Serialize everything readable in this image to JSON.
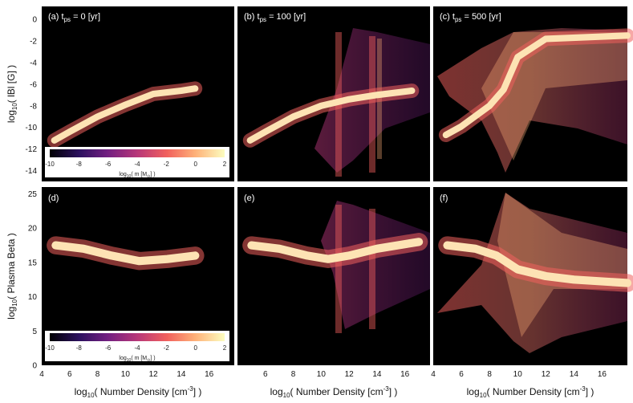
{
  "figure": {
    "y_label_top_prefix": "log",
    "y_label_top_sub": "10",
    "y_label_top_rest": "( lBl [G] )",
    "y_label_bottom_prefix": "log",
    "y_label_bottom_sub": "10",
    "y_label_bottom_rest": "( Plasma Beta )",
    "x_label_prefix": "log",
    "x_label_sub": "10",
    "x_label_rest": "( Number Density [cm",
    "x_label_sup": "-3",
    "x_label_end": "] )"
  },
  "colorbar": {
    "ticks": [
      "-10",
      "-8",
      "-6",
      "-4",
      "-2",
      "0",
      "2"
    ],
    "label_prefix": "log",
    "label_sub": "10",
    "label_mid": "( m [M",
    "label_sub2": "⊙",
    "label_end": "] )",
    "stops": [
      "#000004",
      "#2c115f",
      "#721f81",
      "#b73779",
      "#f1605d",
      "#feb078",
      "#fcfdbf"
    ]
  },
  "chart_data": [
    {
      "type": "heatmap",
      "panel": "(a)",
      "title_prefix": "(a) t",
      "title_sub": "ps",
      "title_rest": " = 0 [yr]",
      "xlim": [
        4,
        17.8
      ],
      "ylim": [
        -15,
        1.2
      ],
      "yticks": [
        "0",
        "-2",
        "-4",
        "-6",
        "-8",
        "-10",
        "-12",
        "-14"
      ],
      "ridge": [
        [
          4.9,
          -11.2
        ],
        [
          6,
          -10.4
        ],
        [
          8,
          -9
        ],
        [
          10,
          -7.9
        ],
        [
          12,
          -6.9
        ],
        [
          14,
          -6.6
        ],
        [
          15,
          -6.4
        ]
      ],
      "ridge_width": 0.6
    },
    {
      "type": "heatmap",
      "panel": "(b)",
      "title_prefix": "(b) t",
      "title_sub": "ps",
      "title_rest": " = 100 [yr]",
      "xlim": [
        4,
        17.8
      ],
      "ylim": [
        -15,
        1.2
      ],
      "ridge": [
        [
          4.9,
          -11.2
        ],
        [
          6,
          -10.4
        ],
        [
          8,
          -9
        ],
        [
          10,
          -8
        ],
        [
          12,
          -7.4
        ],
        [
          14,
          -7
        ],
        [
          16.5,
          -6.6
        ]
      ],
      "ridge_width": 0.6
    },
    {
      "type": "heatmap",
      "panel": "(c)",
      "title_prefix": "(c) t",
      "title_sub": "ps",
      "title_rest": " = 500 [yr]",
      "xlim": [
        4,
        17.8
      ],
      "ylim": [
        -15,
        1.2
      ],
      "ridge": [
        [
          4.9,
          -10.7
        ],
        [
          6,
          -9.9
        ],
        [
          8,
          -8
        ],
        [
          9,
          -6.5
        ],
        [
          10,
          -3.5
        ],
        [
          12,
          -1.8
        ],
        [
          17.8,
          -1.5
        ]
      ],
      "ridge_width": 0.6
    },
    {
      "type": "heatmap",
      "panel": "(d)",
      "title": "(d)",
      "xlim": [
        4,
        17.8
      ],
      "ylim": [
        0,
        26
      ],
      "yticks": [
        "25",
        "20",
        "15",
        "10",
        "5",
        "0"
      ],
      "xticks": [
        "4",
        "6",
        "8",
        "10",
        "12",
        "14",
        "16"
      ],
      "ridge": [
        [
          5,
          17.5
        ],
        [
          7,
          17
        ],
        [
          9,
          16
        ],
        [
          11,
          15.2
        ],
        [
          13,
          15.5
        ],
        [
          15,
          16
        ]
      ],
      "ridge_width": 1.2
    },
    {
      "type": "heatmap",
      "panel": "(e)",
      "title": "(e)",
      "xlim": [
        4,
        17.8
      ],
      "ylim": [
        0,
        26
      ],
      "xticks": [
        "6",
        "8",
        "10",
        "12",
        "14",
        "16"
      ],
      "ridge": [
        [
          5,
          17.5
        ],
        [
          7,
          17
        ],
        [
          9,
          16
        ],
        [
          10.5,
          15.5
        ],
        [
          12,
          16
        ],
        [
          14,
          17
        ],
        [
          17,
          18
        ]
      ],
      "ridge_width": 1.2
    },
    {
      "type": "heatmap",
      "panel": "(f)",
      "title": "(f)",
      "xlim": [
        4,
        17.8
      ],
      "ylim": [
        0,
        26
      ],
      "xticks": [
        "4",
        "6",
        "8",
        "10",
        "12",
        "14",
        "16"
      ],
      "ridge": [
        [
          5,
          17.5
        ],
        [
          7,
          17
        ],
        [
          8.5,
          16
        ],
        [
          10,
          14
        ],
        [
          12,
          13
        ],
        [
          14,
          12.5
        ],
        [
          17.8,
          12
        ]
      ],
      "ridge_width": 1.2
    }
  ]
}
